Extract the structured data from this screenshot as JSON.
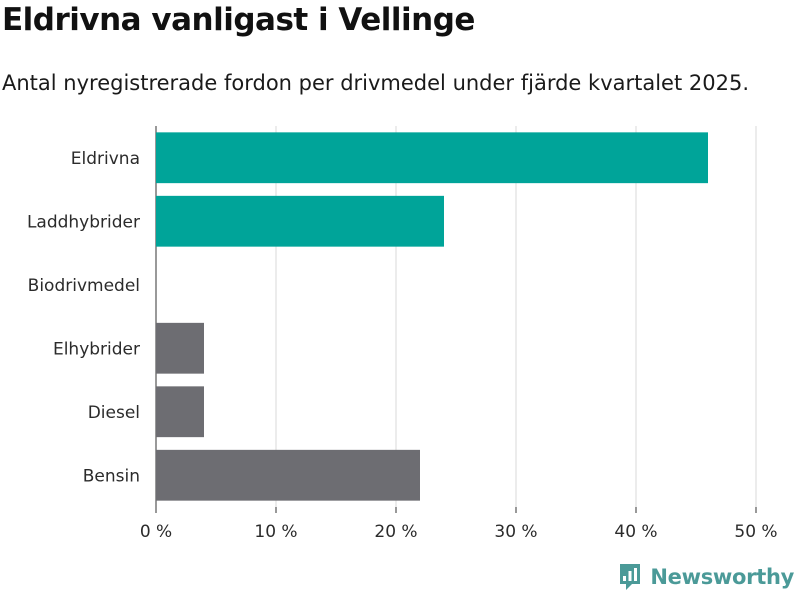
{
  "header": {
    "title": "Eldrivna vanligast i Vellinge",
    "subtitle": "Antal nyregistrerade fordon per drivmedel under fjärde kvartalet 2025."
  },
  "brand": {
    "name": "Newsworthy"
  },
  "colors": {
    "highlight": "#00a499",
    "default": "#6d6d72",
    "grid": "#d9d9d9",
    "brand": "#4b9a98"
  },
  "chart_data": {
    "type": "bar",
    "orientation": "horizontal",
    "title": "Eldrivna vanligast i Vellinge",
    "subtitle": "Antal nyregistrerade fordon per drivmedel under fjärde kvartalet 2025.",
    "xlabel": "",
    "ylabel": "",
    "categories": [
      "Eldrivna",
      "Laddhybrider",
      "Biodrivmedel",
      "Elhybrider",
      "Diesel",
      "Bensin"
    ],
    "values": [
      46,
      24,
      0,
      4,
      4,
      22
    ],
    "highlighted": [
      true,
      true,
      true,
      false,
      false,
      false
    ],
    "unit": "%",
    "xlim": [
      0,
      50
    ],
    "xticks": [
      0,
      10,
      20,
      30,
      40,
      50
    ],
    "xtick_labels": [
      "0 %",
      "10 %",
      "20 %",
      "30 %",
      "40 %",
      "50 %"
    ],
    "grid": true
  }
}
